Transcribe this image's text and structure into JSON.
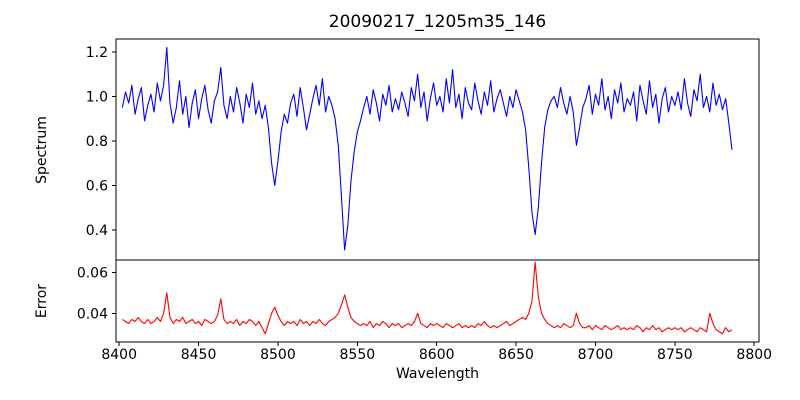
{
  "figure": {
    "background": "#ffffff",
    "text_color": "#000000",
    "spine_color": "#000000"
  },
  "chart_data": {
    "type": "line",
    "title": "20090217_1205m35_146",
    "xlabel": "Wavelength",
    "legend": null,
    "grid": false,
    "xlim": [
      8398,
      8803
    ],
    "xticks": [
      8400,
      8450,
      8500,
      8550,
      8600,
      8650,
      8700,
      8750,
      8800
    ],
    "xtick_labels": [
      "8400",
      "8450",
      "8500",
      "8550",
      "8600",
      "8650",
      "8700",
      "8750",
      "8800"
    ],
    "x": [
      8402,
      8404,
      8406,
      8408,
      8410,
      8412,
      8414,
      8416,
      8418,
      8420,
      8422,
      8424,
      8426,
      8428,
      8430,
      8432,
      8434,
      8436,
      8438,
      8440,
      8442,
      8444,
      8446,
      8448,
      8450,
      8452,
      8454,
      8456,
      8458,
      8460,
      8462,
      8464,
      8466,
      8468,
      8470,
      8472,
      8474,
      8476,
      8478,
      8480,
      8482,
      8484,
      8486,
      8488,
      8490,
      8492,
      8494,
      8496,
      8498,
      8500,
      8502,
      8504,
      8506,
      8508,
      8510,
      8512,
      8514,
      8516,
      8518,
      8520,
      8522,
      8524,
      8526,
      8528,
      8530,
      8532,
      8534,
      8536,
      8538,
      8540,
      8542,
      8544,
      8546,
      8548,
      8550,
      8552,
      8554,
      8556,
      8558,
      8560,
      8562,
      8564,
      8566,
      8568,
      8570,
      8572,
      8574,
      8576,
      8578,
      8580,
      8582,
      8584,
      8586,
      8588,
      8590,
      8592,
      8594,
      8596,
      8598,
      8600,
      8602,
      8604,
      8606,
      8608,
      8610,
      8612,
      8614,
      8616,
      8618,
      8620,
      8622,
      8624,
      8626,
      8628,
      8630,
      8632,
      8634,
      8636,
      8638,
      8640,
      8642,
      8644,
      8646,
      8648,
      8650,
      8652,
      8654,
      8656,
      8658,
      8660,
      8662,
      8664,
      8666,
      8668,
      8670,
      8672,
      8674,
      8676,
      8678,
      8680,
      8682,
      8684,
      8686,
      8688,
      8690,
      8692,
      8694,
      8696,
      8698,
      8700,
      8702,
      8704,
      8706,
      8708,
      8710,
      8712,
      8714,
      8716,
      8718,
      8720,
      8722,
      8724,
      8726,
      8728,
      8730,
      8732,
      8734,
      8736,
      8738,
      8740,
      8742,
      8744,
      8746,
      8748,
      8750,
      8752,
      8754,
      8756,
      8758,
      8760,
      8762,
      8764,
      8766,
      8768,
      8770,
      8772,
      8774,
      8776,
      8778,
      8780,
      8782,
      8784,
      8786
    ],
    "subplots": [
      {
        "name": "spectrum",
        "ylabel": "Spectrum",
        "color": "#0000ff",
        "ylim": [
          0.265,
          1.258
        ],
        "yticks": [
          0.4,
          0.6,
          0.8,
          1.0,
          1.2
        ],
        "ytick_labels": [
          "0.4",
          "0.6",
          "0.8",
          "1.0",
          "1.2"
        ],
        "absorption_lines": [
          8498,
          8542,
          8662
        ],
        "values": [
          0.95,
          1.02,
          0.97,
          1.05,
          0.92,
          0.99,
          1.04,
          0.89,
          0.96,
          1.01,
          0.93,
          1.06,
          0.98,
          1.05,
          1.22,
          0.97,
          0.88,
          0.95,
          1.07,
          0.92,
          1.0,
          0.86,
          0.97,
          1.03,
          0.9,
          0.99,
          1.05,
          0.94,
          0.88,
          0.98,
          1.02,
          1.13,
          0.96,
          0.9,
          1.0,
          0.93,
          1.04,
          0.97,
          0.88,
          1.01,
          0.95,
          1.06,
          0.92,
          0.98,
          0.9,
          0.96,
          0.86,
          0.7,
          0.6,
          0.71,
          0.84,
          0.92,
          0.88,
          0.97,
          1.01,
          0.91,
          1.04,
          0.95,
          0.85,
          0.92,
          0.99,
          1.05,
          0.96,
          1.08,
          0.93,
          1.0,
          0.96,
          0.9,
          0.78,
          0.55,
          0.31,
          0.42,
          0.62,
          0.75,
          0.84,
          0.89,
          0.95,
          1.0,
          0.92,
          1.03,
          0.97,
          0.89,
          1.01,
          0.96,
          1.05,
          0.93,
          0.99,
          0.94,
          1.02,
          0.97,
          0.91,
          1.04,
          0.98,
          1.1,
          0.95,
          1.02,
          0.89,
          0.99,
          1.06,
          0.96,
          1.0,
          0.93,
          1.08,
          0.97,
          1.12,
          0.95,
          1.01,
          0.9,
          1.04,
          0.97,
          0.94,
          1.06,
          0.98,
          0.92,
          1.02,
          0.96,
          1.07,
          0.93,
          0.99,
          1.03,
          0.97,
          0.91,
          1.0,
          0.95,
          1.03,
          0.98,
          0.93,
          0.85,
          0.68,
          0.48,
          0.38,
          0.5,
          0.7,
          0.86,
          0.94,
          0.98,
          1.0,
          0.95,
          1.04,
          0.97,
          0.92,
          1.0,
          0.93,
          0.78,
          0.86,
          0.95,
          0.99,
          1.05,
          0.92,
          1.01,
          0.96,
          1.08,
          0.94,
          1.0,
          0.9,
          1.03,
          0.97,
          1.06,
          0.93,
          0.99,
          0.96,
          1.02,
          0.89,
          1.05,
          0.98,
          0.92,
          1.07,
          0.95,
          1.01,
          0.88,
          0.99,
          1.04,
          0.93,
          1.0,
          0.96,
          1.02,
          0.94,
          1.08,
          0.97,
          0.91,
          1.03,
          0.98,
          1.1,
          0.95,
          1.0,
          0.93,
          1.06,
          0.96,
          1.01,
          0.94,
          0.99,
          0.88,
          0.76
        ]
      },
      {
        "name": "error",
        "ylabel": "Error",
        "color": "#ff0000",
        "ylim": [
          0.026,
          0.066
        ],
        "yticks": [
          0.04,
          0.06
        ],
        "ytick_labels": [
          "0.04",
          "0.06"
        ],
        "values": [
          0.037,
          0.036,
          0.035,
          0.037,
          0.036,
          0.038,
          0.036,
          0.035,
          0.037,
          0.035,
          0.036,
          0.038,
          0.036,
          0.04,
          0.05,
          0.038,
          0.035,
          0.037,
          0.036,
          0.038,
          0.035,
          0.036,
          0.037,
          0.035,
          0.036,
          0.034,
          0.037,
          0.036,
          0.035,
          0.036,
          0.039,
          0.047,
          0.037,
          0.035,
          0.036,
          0.035,
          0.037,
          0.034,
          0.036,
          0.035,
          0.037,
          0.036,
          0.034,
          0.036,
          0.033,
          0.03,
          0.035,
          0.04,
          0.043,
          0.039,
          0.036,
          0.034,
          0.036,
          0.035,
          0.036,
          0.034,
          0.037,
          0.035,
          0.036,
          0.034,
          0.036,
          0.035,
          0.037,
          0.035,
          0.034,
          0.036,
          0.037,
          0.038,
          0.04,
          0.044,
          0.049,
          0.043,
          0.038,
          0.036,
          0.035,
          0.034,
          0.035,
          0.034,
          0.036,
          0.033,
          0.035,
          0.034,
          0.036,
          0.035,
          0.033,
          0.035,
          0.034,
          0.035,
          0.033,
          0.034,
          0.035,
          0.034,
          0.036,
          0.04,
          0.035,
          0.034,
          0.033,
          0.035,
          0.034,
          0.035,
          0.034,
          0.033,
          0.035,
          0.034,
          0.033,
          0.034,
          0.035,
          0.033,
          0.034,
          0.033,
          0.034,
          0.033,
          0.035,
          0.034,
          0.036,
          0.034,
          0.033,
          0.034,
          0.033,
          0.034,
          0.035,
          0.036,
          0.034,
          0.035,
          0.036,
          0.037,
          0.038,
          0.037,
          0.04,
          0.046,
          0.065,
          0.048,
          0.04,
          0.037,
          0.035,
          0.034,
          0.033,
          0.034,
          0.033,
          0.035,
          0.034,
          0.033,
          0.034,
          0.04,
          0.035,
          0.033,
          0.033,
          0.034,
          0.032,
          0.034,
          0.033,
          0.032,
          0.034,
          0.033,
          0.032,
          0.033,
          0.034,
          0.032,
          0.033,
          0.032,
          0.033,
          0.032,
          0.034,
          0.033,
          0.031,
          0.033,
          0.032,
          0.034,
          0.032,
          0.033,
          0.031,
          0.032,
          0.033,
          0.032,
          0.033,
          0.032,
          0.033,
          0.031,
          0.032,
          0.033,
          0.032,
          0.031,
          0.033,
          0.032,
          0.031,
          0.04,
          0.035,
          0.032,
          0.031,
          0.03,
          0.033,
          0.031,
          0.032
        ]
      }
    ]
  }
}
